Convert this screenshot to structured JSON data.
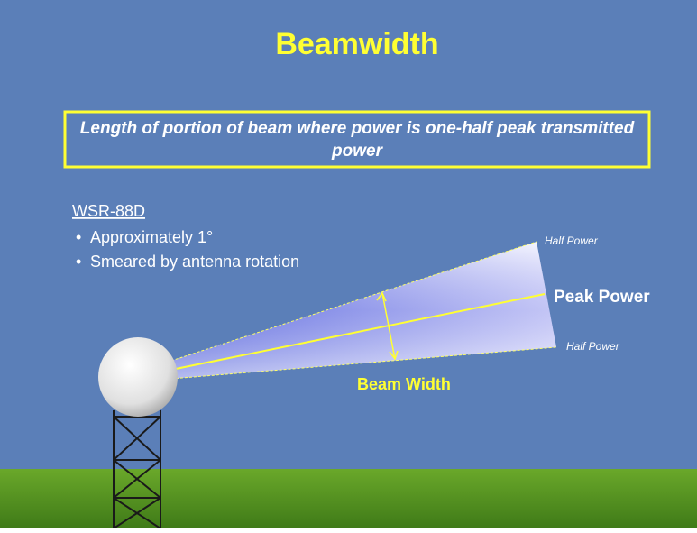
{
  "title": "Beamwidth",
  "definition": "Length of portion of beam where power is one-half peak transmitted power",
  "radar": {
    "name": "WSR-88D",
    "bullets": [
      "Approximately 1°",
      "Smeared by antenna rotation"
    ]
  },
  "labels": {
    "half_power_top": "Half Power",
    "peak_power": "Peak Power",
    "half_power_bottom": "Half Power",
    "beam_width": "Beam Width"
  }
}
